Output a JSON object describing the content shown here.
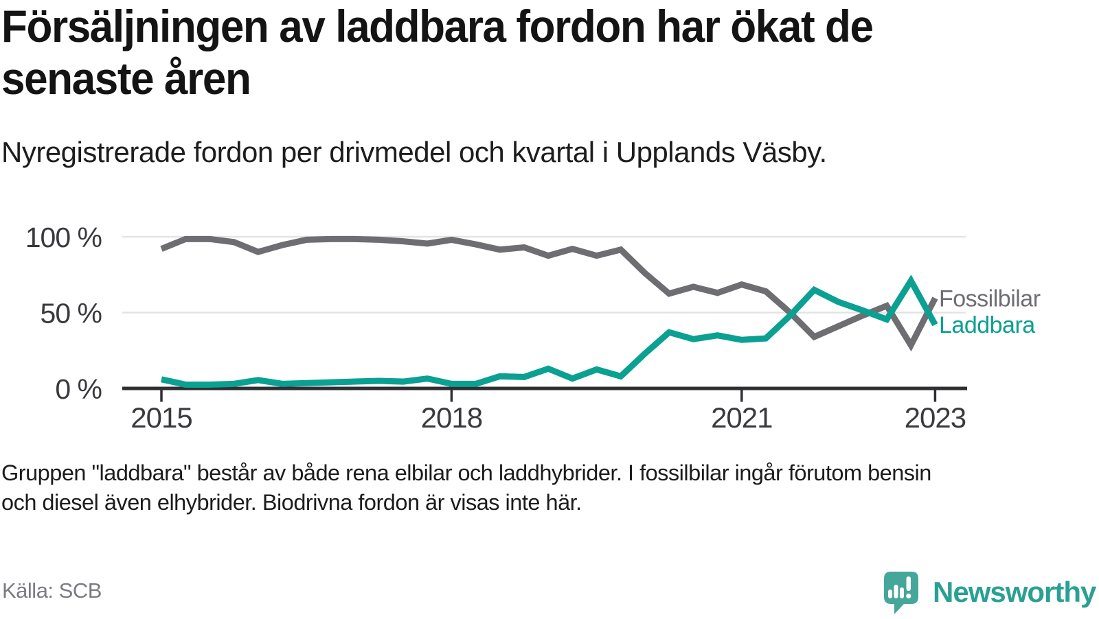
{
  "header": {
    "title": "Försäljningen av laddbara fordon har ökat de senaste åren",
    "subtitle": "Nyregistrerade fordon per drivmedel och kvartal i Upplands Väsby."
  },
  "chart_data": {
    "type": "line",
    "title": "Nyregistrerade fordon per drivmedel och kvartal i Upplands Väsby",
    "unit": "%",
    "grid": "horizontal",
    "legend_position": "right-end-labels",
    "x": [
      "2015-Q1",
      "2015-Q2",
      "2015-Q3",
      "2015-Q4",
      "2016-Q1",
      "2016-Q2",
      "2016-Q3",
      "2016-Q4",
      "2017-Q1",
      "2017-Q2",
      "2017-Q3",
      "2017-Q4",
      "2018-Q1",
      "2018-Q2",
      "2018-Q3",
      "2018-Q4",
      "2019-Q1",
      "2019-Q2",
      "2019-Q3",
      "2019-Q4",
      "2020-Q1",
      "2020-Q2",
      "2020-Q3",
      "2020-Q4",
      "2021-Q1",
      "2021-Q2",
      "2021-Q3",
      "2021-Q4",
      "2022-Q1",
      "2022-Q2",
      "2022-Q3",
      "2022-Q4",
      "2023-Q1"
    ],
    "x_tick_labels": [
      "2015",
      "2018",
      "2021",
      "2023"
    ],
    "x_tick_indices": [
      0,
      12,
      24,
      32
    ],
    "y_tick_labels": [
      "100 %",
      "50 %",
      "0 %"
    ],
    "y_tick_values": [
      100,
      50,
      0
    ],
    "ylim": [
      0,
      105
    ],
    "series": [
      {
        "name": "Fossilbilar",
        "color": "#6e6d72",
        "values": [
          92,
          98.5,
          98.5,
          96.5,
          90,
          94.5,
          98,
          98.5,
          98.5,
          98,
          97,
          95.5,
          98,
          95,
          91.5,
          93,
          87.5,
          92,
          87.5,
          91.5,
          76,
          62.5,
          67,
          63,
          68.5,
          64,
          50,
          34,
          41,
          48,
          54.5,
          28.5,
          59.5
        ]
      },
      {
        "name": "Laddbara",
        "color": "#0aa092",
        "values": [
          6,
          2.5,
          2.5,
          3,
          5.5,
          3,
          3.5,
          4,
          4.5,
          5,
          4.5,
          6.5,
          3,
          3,
          8,
          7.5,
          13,
          6.5,
          12.5,
          8,
          23,
          37,
          32.5,
          35,
          32,
          33,
          48,
          65,
          57,
          51.5,
          45.5,
          71,
          42
        ]
      }
    ]
  },
  "footnote": {
    "text": "Gruppen \"laddbara\" består av både rena elbilar och laddhybrider. I fossilbilar ingår förutom bensin\noch diesel även elhybrider. Biodrivna fordon är visas inte här."
  },
  "source": {
    "label": "Källa: SCB"
  },
  "logo": {
    "wordmark": "Newsworthy",
    "icon": "newsworthy-speech-bubble-chart-icon",
    "bubble_color": "#45a69a",
    "text_color": "#2aa094"
  }
}
